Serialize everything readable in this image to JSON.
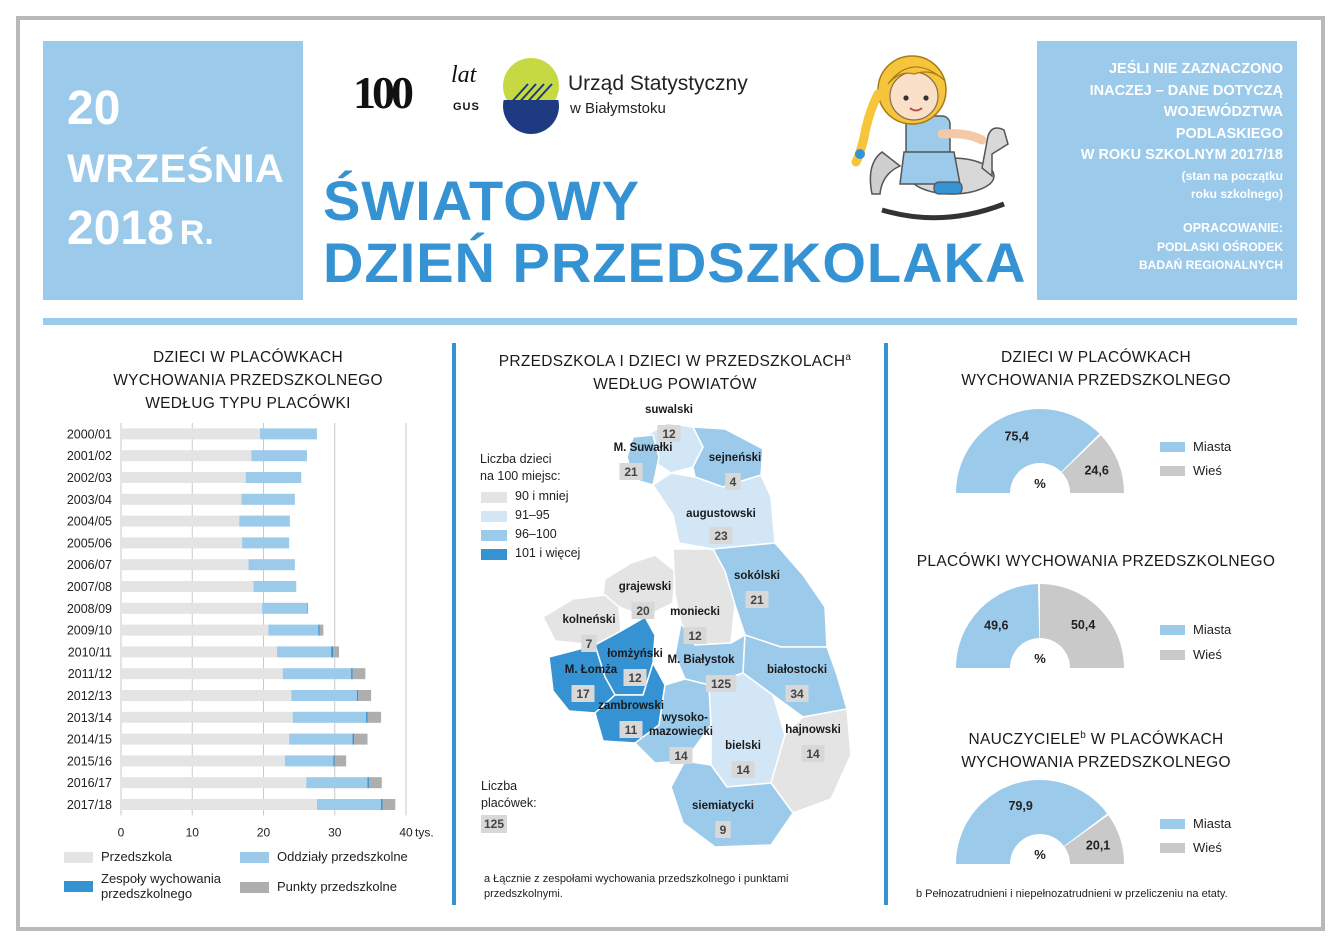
{
  "header": {
    "date_day": "20",
    "date_month": "WRZEŚNIA",
    "date_year": "2018",
    "date_suffix": "R.",
    "logo_100": "100",
    "logo_lat": "lat",
    "logo_gus": "GUS",
    "office_name": "Urząd Statystyczny",
    "office_city": "w Białymstoku",
    "title_line1": "ŚWIATOWY",
    "title_line2": "DZIEŃ PRZEDSZKOLAKA",
    "info_lines": [
      "JEŚLI NIE ZAZNACZONO",
      "INACZEJ – DANE DOTYCZĄ",
      "WOJEWÓDZTWA",
      "PODLASKIEGO",
      "W ROKU SZKOLNYM 2017/18"
    ],
    "info_sub_lines": [
      "(stan na początku",
      "roku szkolnego)"
    ],
    "credit_lines": [
      "OPRACOWANIE:",
      "PODLASKI OŚRODEK",
      "BADAŃ REGIONALNYCH"
    ]
  },
  "colors": {
    "accent": "#3592d3",
    "light_blue": "#9ccaeb",
    "przedszkola": "#e4e4e4",
    "oddzialy": "#9ccaeb",
    "zespoly": "#3592d3",
    "punkty": "#aeaeae",
    "wies": "#c9c9c9",
    "map_90": "#e4e4e4",
    "map_91_95": "#d3e6f6",
    "map_96_100": "#9ccaeb",
    "map_101": "#3592d3"
  },
  "chart_data": [
    {
      "type": "bar",
      "orientation": "horizontal",
      "stacked": true,
      "title_lines": [
        "DZIECI W PLACÓWKACH",
        "WYCHOWANIA PRZEDSZKOLNEGO",
        "WEDŁUG TYPU PLACÓWKI"
      ],
      "categories": [
        "2000/01",
        "2001/02",
        "2002/03",
        "2003/04",
        "2004/05",
        "2005/06",
        "2006/07",
        "2007/08",
        "2008/09",
        "2009/10",
        "2010/11",
        "2011/12",
        "2012/13",
        "2013/14",
        "2014/15",
        "2015/16",
        "2016/17",
        "2017/18"
      ],
      "series": [
        {
          "name": "Przedszkola",
          "values": [
            19.5,
            18.3,
            17.5,
            16.9,
            16.6,
            17.0,
            17.9,
            18.6,
            19.8,
            20.7,
            21.9,
            22.7,
            23.9,
            24.1,
            23.6,
            23.0,
            26.0,
            27.5
          ]
        },
        {
          "name": "Oddziały przedszkolne",
          "values": [
            8.0,
            7.8,
            7.8,
            7.5,
            7.1,
            6.6,
            6.5,
            6.0,
            6.3,
            7.0,
            7.6,
            9.6,
            9.2,
            10.3,
            8.9,
            6.8,
            8.6,
            9.0
          ]
        },
        {
          "name": "Zespoły wychowania przedszkolnego",
          "values": [
            0,
            0,
            0,
            0,
            0,
            0,
            0,
            0,
            0.1,
            0.2,
            0.3,
            0.2,
            0.2,
            0.2,
            0.2,
            0.2,
            0.2,
            0.2
          ]
        },
        {
          "name": "Punkty przedszkolne",
          "values": [
            0,
            0,
            0,
            0,
            0,
            0,
            0,
            0,
            0,
            0.5,
            0.8,
            1.8,
            1.8,
            1.9,
            1.9,
            1.6,
            1.8,
            1.8
          ]
        }
      ],
      "x_ticks": [
        "0",
        "10",
        "20",
        "30",
        "40"
      ],
      "x_unit": "tys.",
      "xlim": [
        0,
        40
      ],
      "grid": true,
      "legend_labels": [
        "Przedszkola",
        "Oddziały przedszkolne",
        "Zespoły wychowania",
        "przedszkolnego",
        "Punkty przedszkolne"
      ],
      "legend_position": "bottom"
    },
    {
      "type": "map",
      "title_line1": "PRZEDSZKOLA I DZIECI W PRZEDSZKOLACH",
      "title_sup": "a",
      "title_line2": "WEDŁUG POWIATÓW",
      "legend_title_lines": [
        "Liczba dzieci",
        "na 100 miejsc:"
      ],
      "classes": [
        "90 i mniej",
        "91–95",
        "96–100",
        "101 i więcej"
      ],
      "count_title_lines": [
        "Liczba",
        "placówek:"
      ],
      "count_example": "125",
      "regions": [
        {
          "name": "suwalski",
          "count": "12",
          "cls": 1
        },
        {
          "name": "M. Suwałki",
          "count": "21",
          "cls": 2
        },
        {
          "name": "sejneński",
          "count": "4",
          "cls": 2
        },
        {
          "name": "augustowski",
          "count": "23",
          "cls": 1
        },
        {
          "name": "grajewski",
          "count": "20",
          "cls": 0
        },
        {
          "name": "moniecki",
          "count": "12",
          "cls": 0
        },
        {
          "name": "sokólski",
          "count": "21",
          "cls": 2
        },
        {
          "name": "kolneński",
          "count": "7",
          "cls": 0
        },
        {
          "name": "łomżyński",
          "count": "12",
          "cls": 3
        },
        {
          "name": "M. Łomża",
          "count": "17",
          "cls": 3
        },
        {
          "name": "M. Białystok",
          "count": "125",
          "cls": 2
        },
        {
          "name": "białostocki",
          "count": "34",
          "cls": 2
        },
        {
          "name": "zambrowski",
          "count": "11",
          "cls": 3
        },
        {
          "name": "wysoko-",
          "count": "",
          "cls": 2
        },
        {
          "name": "mazowiecki",
          "count": "14",
          "cls": 2
        },
        {
          "name": "bielski",
          "count": "14",
          "cls": 1
        },
        {
          "name": "hajnowski",
          "count": "14",
          "cls": 0
        },
        {
          "name": "siemiatycki",
          "count": "9",
          "cls": 2
        }
      ],
      "footnote_lines": [
        "a Łącznie z zespołami wychowania przedszkolnego i punktami",
        "przedszkolnymi."
      ]
    },
    {
      "type": "pie",
      "variant": "half-donut",
      "title_lines": [
        "DZIECI W PLACÓWKACH",
        "WYCHOWANIA PRZEDSZKOLNEGO"
      ],
      "slices": [
        {
          "label": "Miasta",
          "value": 75.4,
          "text": "75,4"
        },
        {
          "label": "Wieś",
          "value": 24.6,
          "text": "24,6"
        }
      ],
      "center_label": "%"
    },
    {
      "type": "pie",
      "variant": "half-donut",
      "title_lines": [
        "PLACÓWKI WYCHOWANIA PRZEDSZKOLNEGO"
      ],
      "slices": [
        {
          "label": "Miasta",
          "value": 49.6,
          "text": "49,6"
        },
        {
          "label": "Wieś",
          "value": 50.4,
          "text": "50,4"
        }
      ],
      "center_label": "%"
    },
    {
      "type": "pie",
      "variant": "half-donut",
      "title_line1": "NAUCZYCIELE",
      "title_sup": "b",
      "title_line1_rest": " W PLACÓWKACH",
      "title_line2": "WYCHOWANIA PRZEDSZKOLNEGO",
      "slices": [
        {
          "label": "Miasta",
          "value": 79.9,
          "text": "79,9"
        },
        {
          "label": "Wieś",
          "value": 20.1,
          "text": "20,1"
        }
      ],
      "center_label": "%"
    }
  ],
  "footnote_b": "b Pełnozatrudnieni i niepełnozatrudnieni w przeliczeniu na etaty."
}
